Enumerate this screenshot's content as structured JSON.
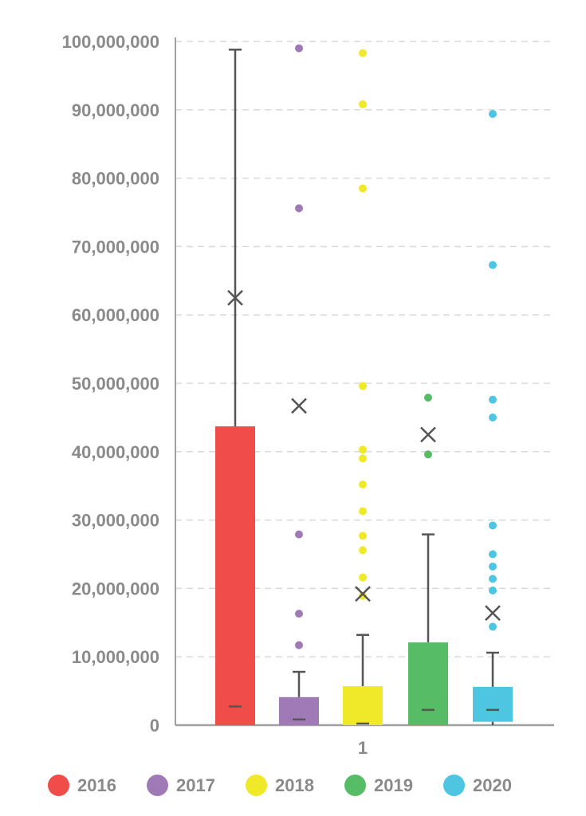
{
  "chart_data": {
    "type": "box",
    "title": "",
    "xlabel": "",
    "ylabel": "",
    "categories": [
      "1"
    ],
    "ylim": [
      0,
      100000000
    ],
    "yticks": [
      "0",
      "10,000,000",
      "20,000,000",
      "30,000,000",
      "40,000,000",
      "50,000,000",
      "60,000,000",
      "70,000,000",
      "80,000,000",
      "90,000,000",
      "100,000,000"
    ],
    "grid": true,
    "legend_position": "bottom",
    "series": [
      {
        "name": "2016",
        "color": "#ef4c4a",
        "q1": 0,
        "median": 2500000,
        "q3": 43700000,
        "whisker_low": 0,
        "whisker_high": 98800000,
        "mean": 62500000,
        "outliers": []
      },
      {
        "name": "2017",
        "color": "#a07ab6",
        "q1": 0,
        "median": 600000,
        "q3": 4100000,
        "whisker_low": 0,
        "whisker_high": 7800000,
        "mean": 46700000,
        "outliers": [
          11700000,
          16300000,
          27900000,
          75600000,
          99000000
        ]
      },
      {
        "name": "2018",
        "color": "#f0e92a",
        "q1": 0,
        "median": 0,
        "q3": 5700000,
        "whisker_low": 0,
        "whisker_high": 13200000,
        "mean": 19200000,
        "outliers": [
          18900000,
          21600000,
          25600000,
          27700000,
          31300000,
          35200000,
          39000000,
          40300000,
          49600000,
          78500000,
          90800000,
          98300000
        ]
      },
      {
        "name": "2019",
        "color": "#57bc66",
        "q1": 0,
        "median": 2000000,
        "q3": 12100000,
        "whisker_low": 0,
        "whisker_high": 27900000,
        "mean": 42500000,
        "outliers": [
          39600000,
          47900000
        ]
      },
      {
        "name": "2020",
        "color": "#4ec6e2",
        "q1": 500000,
        "median": 2000000,
        "q3": 5600000,
        "whisker_low": 0,
        "whisker_high": 10600000,
        "mean": 16400000,
        "outliers": [
          14400000,
          19700000,
          21400000,
          23200000,
          25000000,
          29200000,
          45000000,
          47600000,
          67300000,
          89400000
        ]
      }
    ]
  }
}
